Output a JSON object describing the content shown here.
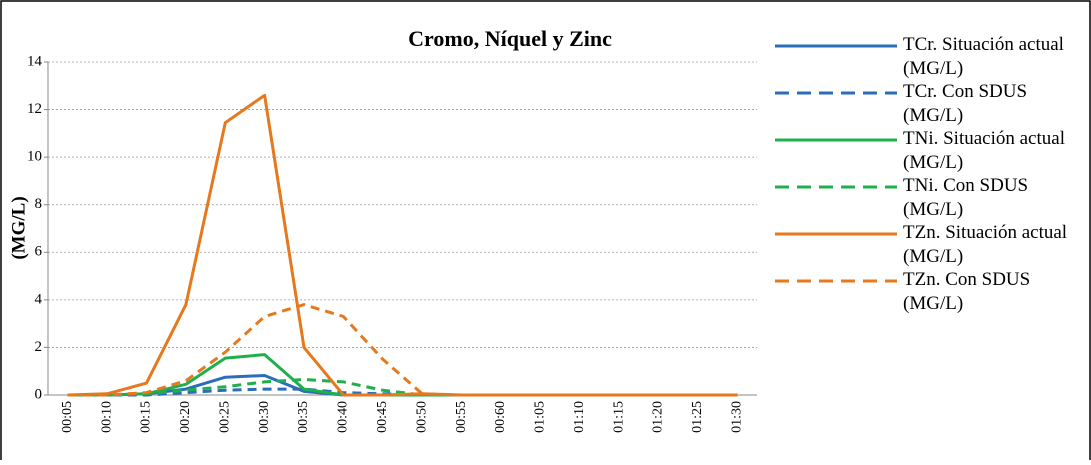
{
  "chart_data": {
    "type": "line",
    "title": "Cromo, Níquel y Zinc",
    "y_label": "(MG/L)",
    "categories": [
      "00:05",
      "00:10",
      "00:15",
      "00:20",
      "00:25",
      "00:30",
      "00:35",
      "00:40",
      "00:45",
      "00:50",
      "00:55",
      "00:60",
      "01:05",
      "01:10",
      "01:15",
      "01:20",
      "01:25",
      "01:30"
    ],
    "series": [
      {
        "name": "TCr. Situación actual (MG/L)",
        "color": "#2a6ebb",
        "dash": false,
        "values": [
          0,
          0,
          0.05,
          0.25,
          0.75,
          0.82,
          0.15,
          0,
          0,
          0,
          0,
          0,
          0,
          0,
          0,
          0,
          0,
          0
        ]
      },
      {
        "name": "TCr. Con SDUS (MG/L)",
        "color": "#2a6ebb",
        "dash": true,
        "values": [
          0,
          0,
          0,
          0.1,
          0.2,
          0.25,
          0.25,
          0.1,
          0.05,
          0,
          0,
          0,
          0,
          0,
          0,
          0,
          0,
          0
        ]
      },
      {
        "name": "TNi. Situación actual (MG/L)",
        "color": "#1fb04c",
        "dash": false,
        "values": [
          0,
          0,
          0.05,
          0.45,
          1.55,
          1.7,
          0.25,
          0,
          0,
          0,
          0,
          0,
          0,
          0,
          0,
          0,
          0,
          0
        ]
      },
      {
        "name": "TNi. Con SDUS (MG/L)",
        "color": "#1fb04c",
        "dash": true,
        "values": [
          0,
          0,
          0.05,
          0.2,
          0.35,
          0.55,
          0.65,
          0.55,
          0.2,
          0,
          0,
          0,
          0,
          0,
          0,
          0,
          0,
          0
        ]
      },
      {
        "name": "TZn. Situación actual (MG/L)",
        "color": "#e6781e",
        "dash": false,
        "values": [
          0,
          0.05,
          0.5,
          3.8,
          11.45,
          12.6,
          2.0,
          0,
          0,
          0.05,
          0,
          0,
          0,
          0,
          0,
          0,
          0,
          0
        ]
      },
      {
        "name": "TZn. Con SDUS (MG/L)",
        "color": "#e6781e",
        "dash": true,
        "values": [
          0,
          0,
          0.1,
          0.6,
          1.8,
          3.3,
          3.8,
          3.3,
          1.5,
          0.05,
          0,
          0,
          0,
          0,
          0,
          0,
          0,
          0
        ]
      }
    ],
    "ylim": [
      0,
      14
    ],
    "yticks": [
      0,
      2,
      4,
      6,
      8,
      10,
      12,
      14
    ],
    "grid": true
  }
}
